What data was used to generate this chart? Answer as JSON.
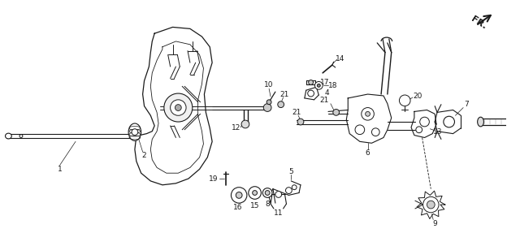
{
  "bg_color": "#ffffff",
  "line_color": "#1a1a1a",
  "fig_width": 6.4,
  "fig_height": 3.03,
  "dpi": 100,
  "fr_label": "FR.",
  "label_fontsize": 6.5,
  "fr_fontsize": 8
}
